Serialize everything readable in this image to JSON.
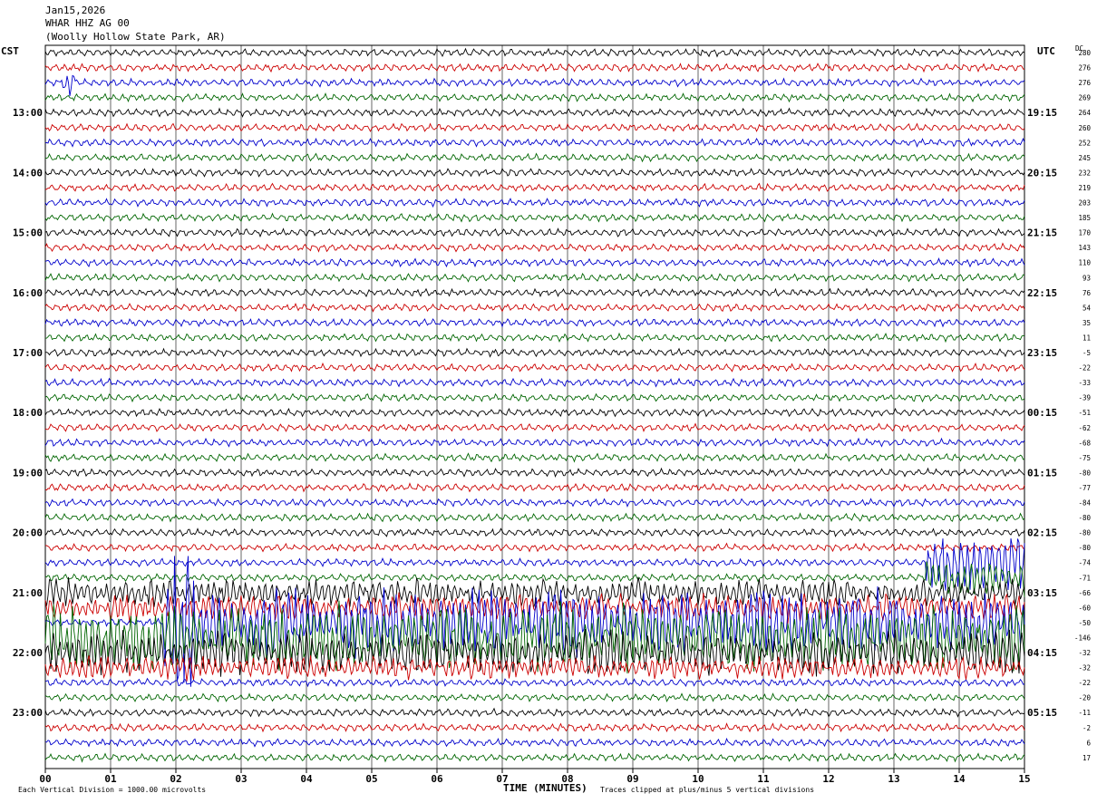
{
  "header": {
    "date": "Jan15,2026",
    "station": "WHAR HHZ AG 00",
    "location": "(Woolly Hollow State Park, AR)"
  },
  "left_timezone": "CST",
  "right_timezone": "UTC",
  "dc_label": "DC",
  "footer": {
    "scale_note": "Each Vertical Division = 1000.00 microvolts",
    "x_title": "TIME (MINUTES)",
    "clip_note": "Traces clipped at plus/minus 5 vertical divisions"
  },
  "colors": {
    "trace_cycle": [
      "#000000",
      "#cc0000",
      "#0000cc",
      "#006600"
    ],
    "grid": "#000000"
  },
  "chart_data": {
    "type": "line",
    "title": "",
    "xlabel": "TIME (MINUTES)",
    "x_ticks": [
      "00",
      "01",
      "02",
      "03",
      "04",
      "05",
      "06",
      "07",
      "08",
      "09",
      "10",
      "11",
      "12",
      "13",
      "14",
      "15"
    ],
    "xlim": [
      0,
      15
    ],
    "traces_per_hour": 4,
    "trace_count": 48,
    "left_hour_labels": [
      "13:00",
      "14:00",
      "15:00",
      "16:00",
      "17:00",
      "18:00",
      "19:00",
      "20:00",
      "21:00",
      "22:00",
      "23:00"
    ],
    "right_hour_labels": [
      "19:15",
      "20:15",
      "21:15",
      "22:15",
      "23:15",
      "00:15",
      "01:15",
      "02:15",
      "03:15",
      "04:15",
      "05:15"
    ],
    "hour_label_trace_index": [
      4,
      8,
      12,
      16,
      20,
      24,
      28,
      32,
      36,
      40,
      44
    ],
    "dc_offsets": [
      "280",
      "276",
      "276",
      "269",
      "264",
      "260",
      "252",
      "245",
      "232",
      "219",
      "203",
      "185",
      "170",
      "143",
      "110",
      "93",
      "76",
      "54",
      "35",
      "11",
      "-5",
      "-22",
      "-33",
      "-39",
      "-51",
      "-62",
      "-68",
      "-75",
      "-80",
      "-77",
      "-84",
      "-80",
      "-80",
      "-80",
      "-74",
      "-71",
      "-66",
      "-60",
      "-50",
      "-146",
      "-32",
      "-32",
      "-22",
      "-20",
      "-11",
      "-2",
      "6",
      "17"
    ],
    "background_amplitude_divisions": 0.25,
    "events": [
      {
        "trace": 2,
        "start_min": 0.25,
        "end_min": 0.45,
        "peak_divisions": 1.2
      },
      {
        "trace": 38,
        "start_min": 1.8,
        "end_min": 2.3,
        "peak_divisions": 5
      },
      {
        "trace": 38,
        "start_min": 2.3,
        "end_min": 15,
        "peak_divisions": 2.5
      },
      {
        "trace": 39,
        "start_min": 0,
        "end_min": 15,
        "peak_divisions": 2.6
      },
      {
        "trace": 40,
        "start_min": 0,
        "end_min": 15,
        "peak_divisions": 1.6
      },
      {
        "trace": 36,
        "start_min": 0,
        "end_min": 15,
        "peak_divisions": 1.0
      },
      {
        "trace": 37,
        "start_min": 0,
        "end_min": 15,
        "peak_divisions": 1.0
      },
      {
        "trace": 41,
        "start_min": 0,
        "end_min": 15,
        "peak_divisions": 0.8
      },
      {
        "trace": 34,
        "start_min": 13.5,
        "end_min": 15,
        "peak_divisions": 2.0
      },
      {
        "trace": 35,
        "start_min": 13.5,
        "end_min": 15,
        "peak_divisions": 1.2
      }
    ]
  }
}
